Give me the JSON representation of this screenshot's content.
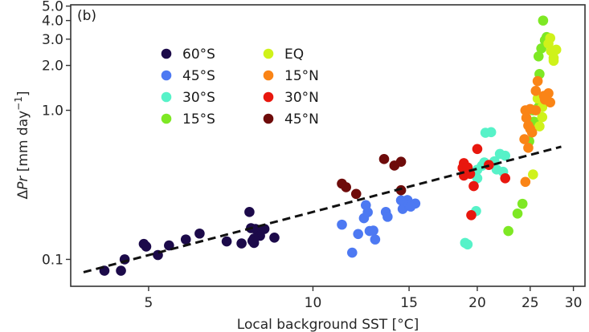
{
  "chart_data": {
    "type": "scatter",
    "panel_label": "(b)",
    "xlabel": "Local background SST [°C]",
    "ylabel": "ΔPr [mm day⁻¹]",
    "ylabel_parts": {
      "delta": "Δ",
      "var": "Pr",
      "units": " [mm day",
      "sup": "−1",
      "close": "]"
    },
    "xscale": "log",
    "yscale": "log",
    "xlim": [
      3.6,
      31.5
    ],
    "ylim": [
      0.066,
      5.1
    ],
    "xticks": [
      5,
      10,
      15,
      20,
      25,
      30
    ],
    "xtick_labels": [
      "5",
      "10",
      "15",
      "20",
      "25",
      "30"
    ],
    "yticks": [
      0.1,
      1.0,
      2.0,
      3.0,
      4.0,
      5.0
    ],
    "ytick_labels": [
      "0.1",
      "1.0",
      "2.0",
      "3.0",
      "4.0",
      "5.0"
    ],
    "grid": false,
    "legend_position": "top-left",
    "fit_line": {
      "style": "dashed",
      "color": "#111111",
      "x": [
        3.8,
        28.5
      ],
      "y": [
        0.082,
        0.57
      ]
    },
    "series": [
      {
        "name": "60°S",
        "color": "#1c0a4a",
        "points": [
          [
            4.15,
            0.084
          ],
          [
            4.45,
            0.084
          ],
          [
            4.52,
            0.1
          ],
          [
            4.9,
            0.127
          ],
          [
            4.95,
            0.122
          ],
          [
            5.2,
            0.107
          ],
          [
            5.45,
            0.124
          ],
          [
            5.85,
            0.136
          ],
          [
            6.2,
            0.149
          ],
          [
            7.65,
            0.208
          ],
          [
            7.7,
            0.162
          ],
          [
            7.85,
            0.16
          ],
          [
            8.15,
            0.16
          ],
          [
            8.0,
            0.144
          ],
          [
            7.8,
            0.138
          ],
          [
            7.8,
            0.129
          ],
          [
            8.5,
            0.14
          ],
          [
            7.75,
            0.133
          ],
          [
            6.95,
            0.132
          ],
          [
            7.4,
            0.128
          ]
        ]
      },
      {
        "name": "45°S",
        "color": "#4d79f2",
        "points": [
          [
            11.3,
            0.171
          ],
          [
            11.8,
            0.111
          ],
          [
            12.1,
            0.148
          ],
          [
            12.4,
            0.189
          ],
          [
            12.6,
            0.207
          ],
          [
            12.5,
            0.231
          ],
          [
            12.7,
            0.155
          ],
          [
            12.9,
            0.156
          ],
          [
            13.0,
            0.136
          ],
          [
            13.6,
            0.208
          ],
          [
            13.7,
            0.193
          ],
          [
            14.5,
            0.249
          ],
          [
            14.6,
            0.218
          ],
          [
            14.9,
            0.25
          ],
          [
            15.0,
            0.231
          ],
          [
            15.4,
            0.237
          ],
          [
            15.1,
            0.226
          ]
        ]
      },
      {
        "name": "30°S",
        "color": "#57f2c8",
        "points": [
          [
            19.0,
            0.129
          ],
          [
            19.2,
            0.126
          ],
          [
            19.9,
            0.211
          ],
          [
            20.0,
            0.399
          ],
          [
            20.4,
            0.425
          ],
          [
            20.6,
            0.447
          ],
          [
            20.7,
            0.707
          ],
          [
            21.2,
            0.713
          ],
          [
            21.5,
            0.455
          ],
          [
            21.7,
            0.401
          ],
          [
            22.0,
            0.51
          ],
          [
            22.5,
            0.496
          ],
          [
            22.3,
            0.387
          ],
          [
            20.0,
            0.35
          ]
        ]
      },
      {
        "name": "15°S",
        "color": "#7ee824",
        "points": [
          [
            22.8,
            0.155
          ],
          [
            23.7,
            0.203
          ],
          [
            24.2,
            0.236
          ],
          [
            24.9,
            0.62
          ],
          [
            25.3,
            1.0
          ],
          [
            25.4,
            0.84
          ],
          [
            26.0,
            1.75
          ],
          [
            25.9,
            2.3
          ],
          [
            26.2,
            2.6
          ],
          [
            26.4,
            4.0
          ],
          [
            26.6,
            2.95
          ],
          [
            26.8,
            3.1
          ],
          [
            25.9,
            1.05
          ]
        ]
      },
      {
        "name": "EQ",
        "color": "#cff21a",
        "points": [
          [
            25.3,
            0.371
          ],
          [
            25.8,
            1.2
          ],
          [
            26.0,
            0.78
          ],
          [
            26.3,
            1.05
          ],
          [
            27.0,
            2.8
          ],
          [
            27.3,
            2.5
          ],
          [
            27.6,
            2.25
          ],
          [
            27.9,
            2.55
          ],
          [
            27.2,
            3.05
          ],
          [
            27.6,
            2.15
          ],
          [
            26.3,
            0.9
          ]
        ]
      },
      {
        "name": "15°N",
        "color": "#fa8416",
        "points": [
          [
            24.5,
            0.331
          ],
          [
            24.4,
            0.64
          ],
          [
            24.6,
            0.89
          ],
          [
            24.8,
            0.79
          ],
          [
            25.0,
            0.75
          ],
          [
            24.5,
            1.0
          ],
          [
            25.0,
            1.02
          ],
          [
            25.6,
            1.0
          ],
          [
            25.6,
            1.35
          ],
          [
            25.8,
            1.57
          ],
          [
            26.5,
            1.25
          ],
          [
            27.0,
            1.3
          ],
          [
            26.6,
            1.18
          ],
          [
            27.2,
            1.13
          ],
          [
            25.2,
            0.71
          ],
          [
            24.8,
            0.56
          ]
        ]
      },
      {
        "name": "30°N",
        "color": "#e8170e",
        "points": [
          [
            18.9,
            0.442
          ],
          [
            18.8,
            0.411
          ],
          [
            19.2,
            0.414
          ],
          [
            19.4,
            0.375
          ],
          [
            19.7,
            0.31
          ],
          [
            19.5,
            0.198
          ],
          [
            20.0,
            0.55
          ],
          [
            21.0,
            0.43
          ],
          [
            22.5,
            0.35
          ],
          [
            18.9,
            0.365
          ]
        ]
      },
      {
        "name": "45°N",
        "color": "#6e0b0a",
        "points": [
          [
            11.3,
            0.322
          ],
          [
            11.5,
            0.305
          ],
          [
            12.0,
            0.275
          ],
          [
            13.5,
            0.471
          ],
          [
            14.1,
            0.426
          ],
          [
            14.5,
            0.452
          ],
          [
            14.5,
            0.291
          ]
        ]
      }
    ]
  }
}
